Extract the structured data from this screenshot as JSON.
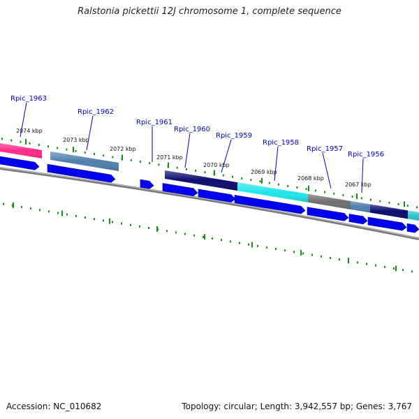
{
  "title": "Ralstonia pickettii 12J chromosome 1, complete sequence",
  "footer": {
    "accession": "Accession: NC_010682",
    "summary": "Topology: circular; Length: 3,942,557 bp; Genes: 3,767"
  },
  "colors": {
    "gene_label": "#0000cc",
    "cds_arrow": "#0000ee",
    "ruler_tick": "#1a8a1a",
    "backbone": "#7a7a7a",
    "gene_pink": "#ff2a8a",
    "gene_steelblue": "#4f7fad",
    "gene_navy": "#0b0b6e",
    "gene_cyan": "#1ee6ea",
    "gene_gray": "#6f6f6f",
    "gene_teal": "#2ec4cf"
  },
  "kbp_labels": [
    "2074 kbp",
    "2073 kbp",
    "2072 kbp",
    "2071 kbp",
    "2070 kbp",
    "2069 kbp",
    "2068 kbp",
    "2067 kbp"
  ],
  "genes": [
    {
      "name": "Rpic_1963",
      "color": "gene_pink"
    },
    {
      "name": "Rpic_1962",
      "color": "gene_steelblue"
    },
    {
      "name": "Rpic_1961",
      "color": "gene_navy"
    },
    {
      "name": "Rpic_1960",
      "color": "gene_navy"
    },
    {
      "name": "Rpic_1959",
      "color": "gene_cyan"
    },
    {
      "name": "Rpic_1958",
      "color": "gene_cyan"
    },
    {
      "name": "Rpic_1957",
      "color": "gene_gray"
    },
    {
      "name": "Rpic_1956",
      "color": "gene_steelblue"
    }
  ]
}
